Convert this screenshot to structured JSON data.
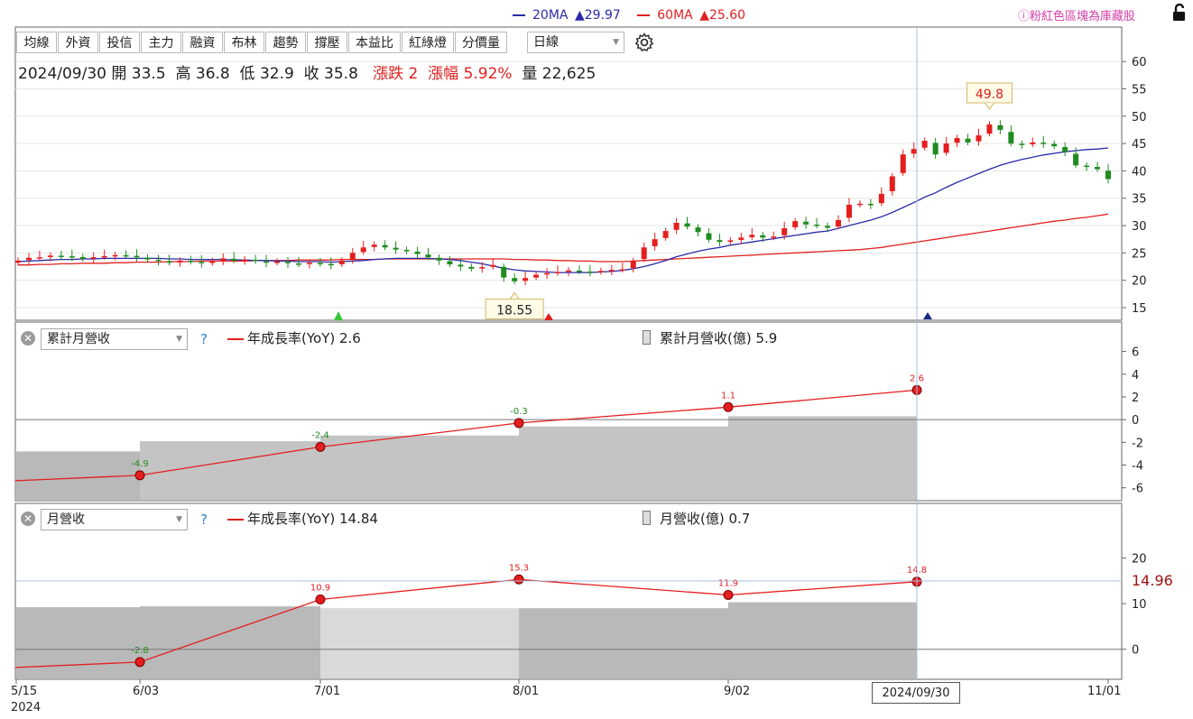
{
  "header": {
    "ma20_label": "20MA",
    "ma20_value": "▲29.97",
    "ma60_label": "60MA",
    "ma60_value": "▲25.60",
    "notice": "ⓘ粉紅色區塊為庫藏股",
    "colors": {
      "ma20": "#2a2aa8",
      "ma60": "#e02020",
      "notice": "#d43ca8"
    }
  },
  "toolbar": {
    "buttons": [
      "均線",
      "外資",
      "投信",
      "主力",
      "融資",
      "布林",
      "趨勢",
      "撐壓",
      "本益比",
      "紅綠燈",
      "分價量"
    ],
    "period_select": "日線",
    "settings_icon": "gear-icon"
  },
  "quote": {
    "date": "2024/09/30",
    "open_label": "開",
    "open": "33.5",
    "high_label": "高",
    "high": "36.8",
    "low_label": "低",
    "low": "32.9",
    "close_label": "收",
    "close": "35.8",
    "change_label": "漲跌",
    "change": "2",
    "pct_label": "漲幅",
    "pct": "5.92%",
    "vol_label": "量",
    "vol": "22,625"
  },
  "panel1": {
    "select": "累計月營收",
    "help": "?",
    "line_legend": "年成長率(YoY) 2.6",
    "bar_legend": "累計月營收(億) 5.9"
  },
  "panel2": {
    "select": "月營收",
    "help": "?",
    "line_legend": "年成長率(YoY) 14.84",
    "bar_legend": "月營收(億) 0.7"
  },
  "x_axis": {
    "ticks": [
      "5/15",
      "6/03",
      "7/01",
      "8/01",
      "9/02",
      "11/01"
    ],
    "year": "2024",
    "cursor_label": "2024/09/30"
  },
  "chart_data": [
    {
      "type": "line",
      "title": "",
      "description": "Daily price (candlestick) with 20MA and 60MA",
      "y_ticks": [
        15,
        20,
        25,
        30,
        35,
        40,
        45,
        50,
        55,
        60
      ],
      "ylim": [
        14,
        63
      ],
      "highlight_high": "49.8",
      "highlight_low": "18.55",
      "price_close": [
        23.6,
        24.1,
        24.2,
        24.5,
        24.4,
        24.3,
        23.9,
        24.2,
        24.4,
        24.6,
        24.5,
        24.2,
        23.8,
        23.5,
        23.2,
        23.6,
        23.4,
        23.1,
        23.5,
        24.0,
        23.6,
        23.8,
        23.5,
        23.2,
        23.4,
        23.1,
        22.9,
        23.2,
        23.0,
        22.8,
        23.6,
        25.0,
        26.0,
        26.5,
        26.0,
        25.6,
        25.3,
        24.8,
        24.2,
        23.6,
        22.9,
        22.5,
        22.1,
        22.4,
        22.8,
        20.5,
        19.8,
        20.4,
        21.0,
        21.3,
        21.5,
        21.8,
        21.6,
        21.5,
        21.7,
        21.9,
        22.0,
        23.5,
        26.0,
        27.5,
        29.0,
        30.5,
        29.8,
        28.8,
        27.4,
        27.0,
        27.3,
        27.8,
        28.3,
        27.8,
        28.0,
        29.5,
        30.8,
        30.2,
        30.0,
        29.6,
        31.0,
        33.8,
        34.0,
        33.8,
        35.8,
        39.0,
        43.0,
        44.0,
        45.5,
        43.0,
        45.0,
        46.0,
        45.2,
        46.5,
        48.5,
        47.5,
        45.0,
        44.8,
        45.2,
        45.0,
        44.5,
        43.5,
        41.0,
        40.8,
        40.3,
        38.5
      ],
      "ma20": [
        23.4,
        23.5,
        23.6,
        23.7,
        23.8,
        23.8,
        23.9,
        23.9,
        24.0,
        24.0,
        24.0,
        24.0,
        24.0,
        24.0,
        23.9,
        23.9,
        23.8,
        23.8,
        23.8,
        23.8,
        23.7,
        23.7,
        23.6,
        23.6,
        23.5,
        23.5,
        23.4,
        23.4,
        23.4,
        23.3,
        23.4,
        23.5,
        23.6,
        23.8,
        23.9,
        24.0,
        24.0,
        24.0,
        24.0,
        23.9,
        23.8,
        23.6,
        23.3,
        23.0,
        22.6,
        22.2,
        21.9,
        21.7,
        21.6,
        21.5,
        21.4,
        21.4,
        21.4,
        21.4,
        21.5,
        21.6,
        21.8,
        22.1,
        22.5,
        23.0,
        23.6,
        24.3,
        24.8,
        25.3,
        25.7,
        26.0,
        26.4,
        26.7,
        27.0,
        27.3,
        27.6,
        27.9,
        28.2,
        28.5,
        28.8,
        29.0,
        29.5,
        30.0,
        30.5,
        31.0,
        31.6,
        32.4,
        33.3,
        34.2,
        35.2,
        36.0,
        37.0,
        37.9,
        38.7,
        39.5,
        40.3,
        41.0,
        41.6,
        42.1,
        42.5,
        42.9,
        43.2,
        43.5,
        43.7,
        43.9,
        44.0,
        44.2
      ],
      "ma60": [
        22.8,
        22.8,
        22.9,
        22.9,
        23.0,
        23.0,
        23.1,
        23.1,
        23.1,
        23.2,
        23.2,
        23.3,
        23.3,
        23.3,
        23.4,
        23.4,
        23.4,
        23.5,
        23.5,
        23.5,
        23.5,
        23.5,
        23.6,
        23.6,
        23.6,
        23.6,
        23.7,
        23.7,
        23.7,
        23.7,
        23.8,
        23.8,
        23.8,
        23.8,
        23.9,
        23.9,
        23.9,
        23.9,
        23.9,
        23.9,
        23.9,
        23.9,
        23.9,
        23.9,
        23.9,
        23.9,
        23.8,
        23.8,
        23.7,
        23.7,
        23.6,
        23.6,
        23.5,
        23.5,
        23.4,
        23.4,
        23.4,
        23.5,
        23.6,
        23.7,
        23.8,
        23.9,
        24.0,
        24.1,
        24.2,
        24.3,
        24.4,
        24.5,
        24.6,
        24.7,
        24.8,
        24.9,
        25.0,
        25.1,
        25.2,
        25.3,
        25.4,
        25.5,
        25.6,
        25.8,
        26.0,
        26.3,
        26.6,
        26.9,
        27.2,
        27.5,
        27.8,
        28.1,
        28.4,
        28.7,
        29.0,
        29.3,
        29.6,
        29.9,
        30.2,
        30.5,
        30.8,
        31.0,
        31.3,
        31.5,
        31.8,
        32.1
      ]
    },
    {
      "type": "area",
      "title": "累計月營收",
      "series": [
        {
          "name": "年成長率(YoY)",
          "x": [
            "6/03",
            "7/01",
            "8/01",
            "9/02",
            "2024/09/30"
          ],
          "values": [
            -4.9,
            -2.4,
            -0.3,
            1.1,
            2.6
          ]
        }
      ],
      "bars": [
        -2.8,
        -1.9,
        -1.4,
        -0.6,
        0.3
      ],
      "y_ticks": [
        6,
        4,
        2,
        0,
        -2,
        -4,
        -6
      ],
      "ylim": [
        -6.5,
        7
      ]
    },
    {
      "type": "area",
      "title": "月營收",
      "series": [
        {
          "name": "年成長率(YoY)",
          "x": [
            "6/03",
            "7/01",
            "8/01",
            "9/02",
            "2024/09/30"
          ],
          "values": [
            -2.8,
            10.9,
            15.3,
            11.9,
            14.8
          ]
        }
      ],
      "bars": [
        9.2,
        9.4,
        9.0,
        9.0,
        10.3
      ],
      "y_ticks": [
        20,
        10,
        0
      ],
      "ylim": [
        -5,
        28
      ],
      "crosshair_value": "14.96"
    }
  ]
}
